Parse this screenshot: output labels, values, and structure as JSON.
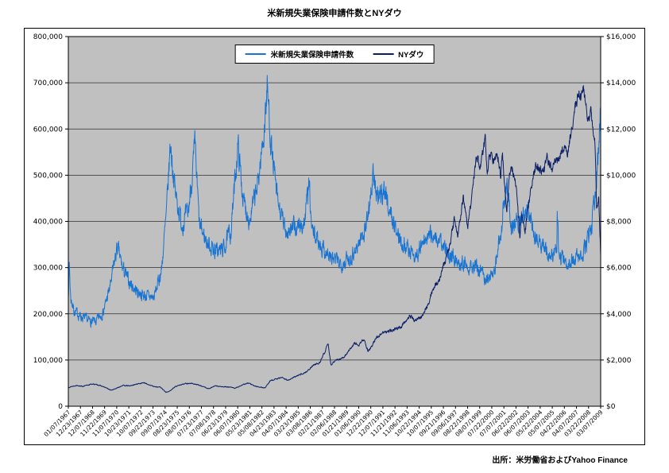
{
  "page": {
    "background": "#ffffff"
  },
  "chart_data": {
    "type": "line",
    "title": "米新規失業保険申請件数とNYダウ",
    "source": "出所：米労働省およびYahoo Finance",
    "plot": {
      "background": "#c0c0c0",
      "gridline_color": "#2e2e2e",
      "border_color": "#000000",
      "grid": "horizontal-only",
      "legend_position": "top-center"
    },
    "x_axis": {
      "start_year": 1967.02,
      "end_year": 2009.18,
      "tick_labels": [
        "01/07/1967",
        "12/23/1967",
        "12/07/1968",
        "11/22/1969",
        "11/07/1970",
        "10/23/1971",
        "10/07/1972",
        "09/22/1973",
        "09/07/1974",
        "08/23/1975",
        "08/07/1976",
        "07/23/1977",
        "07/08/1978",
        "06/23/1979",
        "06/07/1980",
        "05/23/1981",
        "05/08/1982",
        "04/23/1983",
        "04/07/1984",
        "03/23/1985",
        "03/08/1986",
        "02/21/1987",
        "02/06/1988",
        "01/21/1989",
        "01/06/1990",
        "12/22/1990",
        "12/07/1991",
        "11/21/1992",
        "11/06/1993",
        "10/22/1994",
        "10/07/1995",
        "09/21/1996",
        "09/06/1997",
        "08/22/1998",
        "08/07/1999",
        "07/22/2000",
        "07/07/2001",
        "06/22/2002",
        "06/07/2003",
        "05/22/2004",
        "05/07/2005",
        "04/22/2006",
        "04/07/2007",
        "03/22/2008",
        "03/07/2009"
      ]
    },
    "left_axis": {
      "min": 0,
      "max": 800000,
      "step": 100000,
      "format": "thousands"
    },
    "right_axis": {
      "min": 0,
      "max": 16000,
      "step": 2000,
      "format": "dollars"
    },
    "series": [
      {
        "name": "米新規失業保険申請件数",
        "axis": "left",
        "color": "#1874d2",
        "seed": 7,
        "noise_frac": 0.055,
        "anchors": [
          [
            1967.02,
            245000
          ],
          [
            1967.1,
            310000
          ],
          [
            1967.2,
            235000
          ],
          [
            1967.5,
            205000
          ],
          [
            1968.0,
            195000
          ],
          [
            1968.6,
            185000
          ],
          [
            1969.2,
            182000
          ],
          [
            1969.8,
            205000
          ],
          [
            1970.3,
            255000
          ],
          [
            1970.9,
            345000
          ],
          [
            1971.3,
            300000
          ],
          [
            1971.8,
            270000
          ],
          [
            1972.4,
            250000
          ],
          [
            1973.0,
            240000
          ],
          [
            1973.8,
            235000
          ],
          [
            1974.4,
            295000
          ],
          [
            1974.8,
            420000
          ],
          [
            1975.1,
            570000
          ],
          [
            1975.5,
            460000
          ],
          [
            1976.0,
            395000
          ],
          [
            1976.5,
            415000
          ],
          [
            1977.05,
            560000
          ],
          [
            1977.4,
            390000
          ],
          [
            1978.0,
            355000
          ],
          [
            1978.7,
            335000
          ],
          [
            1979.3,
            340000
          ],
          [
            1979.9,
            380000
          ],
          [
            1980.45,
            565000
          ],
          [
            1980.9,
            440000
          ],
          [
            1981.4,
            405000
          ],
          [
            1982.0,
            475000
          ],
          [
            1982.5,
            590000
          ],
          [
            1982.78,
            690000
          ],
          [
            1983.1,
            560000
          ],
          [
            1983.6,
            440000
          ],
          [
            1984.2,
            380000
          ],
          [
            1985.0,
            385000
          ],
          [
            1985.7,
            395000
          ],
          [
            1986.08,
            480000
          ],
          [
            1986.3,
            380000
          ],
          [
            1987.0,
            350000
          ],
          [
            1987.8,
            320000
          ],
          [
            1988.6,
            310000
          ],
          [
            1989.3,
            320000
          ],
          [
            1990.0,
            350000
          ],
          [
            1990.6,
            390000
          ],
          [
            1991.15,
            495000
          ],
          [
            1991.6,
            440000
          ],
          [
            1992.0,
            475000
          ],
          [
            1992.5,
            420000
          ],
          [
            1993.1,
            370000
          ],
          [
            1993.8,
            345000
          ],
          [
            1994.5,
            325000
          ],
          [
            1995.2,
            355000
          ],
          [
            1995.8,
            375000
          ],
          [
            1996.4,
            355000
          ],
          [
            1997.0,
            335000
          ],
          [
            1997.8,
            315000
          ],
          [
            1998.5,
            310000
          ],
          [
            1999.2,
            300000
          ],
          [
            1999.9,
            285000
          ],
          [
            2000.4,
            272000
          ],
          [
            2000.9,
            315000
          ],
          [
            2001.4,
            405000
          ],
          [
            2001.75,
            485000
          ],
          [
            2002.1,
            390000
          ],
          [
            2002.7,
            405000
          ],
          [
            2003.3,
            430000
          ],
          [
            2003.9,
            375000
          ],
          [
            2004.5,
            345000
          ],
          [
            2005.2,
            325000
          ],
          [
            2005.7,
            330000
          ],
          [
            2005.74,
            420000
          ],
          [
            2005.85,
            335000
          ],
          [
            2006.4,
            305000
          ],
          [
            2007.0,
            318000
          ],
          [
            2007.6,
            322000
          ],
          [
            2008.0,
            345000
          ],
          [
            2008.4,
            375000
          ],
          [
            2008.7,
            445000
          ],
          [
            2008.9,
            510000
          ],
          [
            2009.05,
            590000
          ],
          [
            2009.18,
            665000
          ]
        ]
      },
      {
        "name": "NYダウ",
        "axis": "right",
        "color": "#0b1f66",
        "seed": 13,
        "noise_frac": 0.02,
        "anchors": [
          [
            1967.02,
            820
          ],
          [
            1967.7,
            905
          ],
          [
            1968.2,
            860
          ],
          [
            1968.9,
            965
          ],
          [
            1969.4,
            920
          ],
          [
            1970.0,
            800
          ],
          [
            1970.4,
            690
          ],
          [
            1970.9,
            790
          ],
          [
            1971.3,
            900
          ],
          [
            1971.9,
            880
          ],
          [
            1972.3,
            940
          ],
          [
            1972.95,
            1020
          ],
          [
            1973.3,
            950
          ],
          [
            1973.9,
            840
          ],
          [
            1974.3,
            830
          ],
          [
            1974.75,
            600
          ],
          [
            1975.0,
            640
          ],
          [
            1975.5,
            850
          ],
          [
            1976.2,
            980
          ],
          [
            1976.75,
            990
          ],
          [
            1977.4,
            910
          ],
          [
            1978.15,
            760
          ],
          [
            1978.65,
            880
          ],
          [
            1979.2,
            840
          ],
          [
            1979.75,
            830
          ],
          [
            1980.25,
            780
          ],
          [
            1980.9,
            950
          ],
          [
            1981.3,
            1000
          ],
          [
            1981.75,
            880
          ],
          [
            1982.15,
            830
          ],
          [
            1982.6,
            790
          ],
          [
            1983.0,
            1100
          ],
          [
            1983.9,
            1250
          ],
          [
            1984.45,
            1120
          ],
          [
            1985.0,
            1280
          ],
          [
            1985.9,
            1500
          ],
          [
            1986.5,
            1800
          ],
          [
            1986.95,
            1900
          ],
          [
            1987.6,
            2690
          ],
          [
            1987.82,
            1770
          ],
          [
            1988.1,
            1960
          ],
          [
            1988.8,
            2100
          ],
          [
            1989.7,
            2740
          ],
          [
            1990.05,
            2650
          ],
          [
            1990.45,
            2900
          ],
          [
            1990.75,
            2400
          ],
          [
            1991.1,
            2600
          ],
          [
            1991.35,
            2950
          ],
          [
            1992.0,
            3200
          ],
          [
            1992.7,
            3280
          ],
          [
            1993.4,
            3450
          ],
          [
            1994.05,
            3920
          ],
          [
            1994.5,
            3700
          ],
          [
            1995.0,
            3850
          ],
          [
            1995.6,
            4550
          ],
          [
            1995.95,
            5150
          ],
          [
            1996.4,
            5500
          ],
          [
            1996.95,
            6450
          ],
          [
            1997.2,
            6900
          ],
          [
            1997.6,
            8150
          ],
          [
            1997.85,
            7450
          ],
          [
            1998.3,
            9050
          ],
          [
            1998.65,
            7650
          ],
          [
            1999.0,
            9300
          ],
          [
            1999.35,
            10900
          ],
          [
            1999.65,
            10300
          ],
          [
            1999.95,
            11300
          ],
          [
            2000.05,
            11650
          ],
          [
            2000.2,
            10100
          ],
          [
            2000.35,
            10900
          ],
          [
            2000.65,
            10650
          ],
          [
            2000.9,
            10850
          ],
          [
            2001.1,
            10650
          ],
          [
            2001.25,
            9900
          ],
          [
            2001.4,
            10950
          ],
          [
            2001.73,
            8300
          ],
          [
            2001.95,
            9900
          ],
          [
            2002.2,
            10300
          ],
          [
            2002.55,
            9200
          ],
          [
            2002.78,
            7350
          ],
          [
            2002.92,
            8450
          ],
          [
            2003.2,
            7650
          ],
          [
            2003.6,
            9150
          ],
          [
            2004.05,
            10500
          ],
          [
            2004.6,
            10050
          ],
          [
            2004.95,
            10750
          ],
          [
            2005.3,
            10250
          ],
          [
            2005.7,
            10550
          ],
          [
            2006.0,
            10900
          ],
          [
            2006.35,
            11250
          ],
          [
            2006.55,
            10850
          ],
          [
            2007.0,
            12450
          ],
          [
            2007.4,
            13550
          ],
          [
            2007.6,
            13300
          ],
          [
            2007.78,
            13950
          ],
          [
            2007.95,
            13250
          ],
          [
            2008.2,
            12250
          ],
          [
            2008.4,
            12750
          ],
          [
            2008.55,
            11900
          ],
          [
            2008.7,
            11500
          ],
          [
            2008.78,
            10300
          ],
          [
            2008.85,
            8600
          ],
          [
            2008.95,
            8850
          ],
          [
            2009.02,
            9000
          ],
          [
            2009.1,
            7900
          ],
          [
            2009.18,
            6600
          ]
        ]
      }
    ]
  }
}
